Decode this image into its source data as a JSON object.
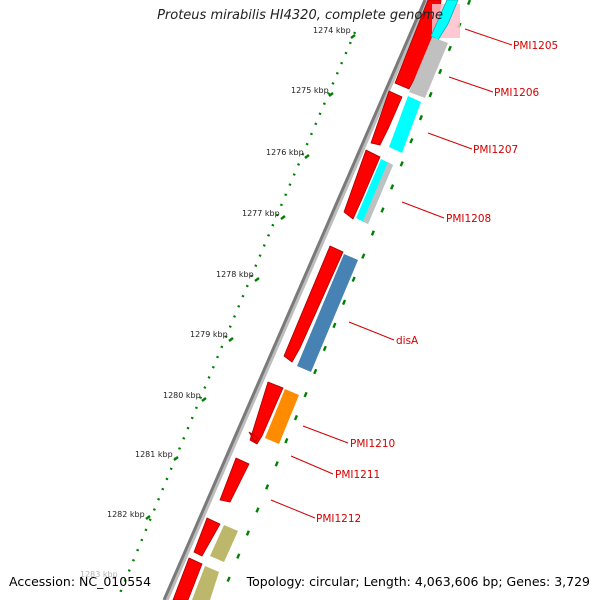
{
  "title": "Proteus mirabilis HI4320, complete genome",
  "accession": "Accession: NC_010554",
  "summary": "Topology: circular; Length: 4,063,606 bp; Genes: 3,729",
  "colors": {
    "backbone": "#888888",
    "cds": "#ff0000",
    "tick": "#008000",
    "label": "#d40000",
    "other": "#00ffff",
    "grey": "#c0c0c0",
    "blue": "#4682b4",
    "orange": "#ff8c00",
    "olive": "#bdb76b"
  },
  "ruler": {
    "tick_labels": [
      "1274 kbp",
      "1275 kbp",
      "1276 kbp",
      "1277 kbp",
      "1278 kbp",
      "1279 kbp",
      "1280 kbp",
      "1281 kbp",
      "1282 kbp",
      "1283 kbp"
    ]
  },
  "genes": [
    {
      "label": "PMI1205"
    },
    {
      "label": "PMI1206"
    },
    {
      "label": "PMI1207"
    },
    {
      "label": "PMI1208"
    },
    {
      "label": "disA"
    },
    {
      "label": "PMI1210"
    },
    {
      "label": "PMI1211"
    },
    {
      "label": "PMI1212"
    }
  ]
}
